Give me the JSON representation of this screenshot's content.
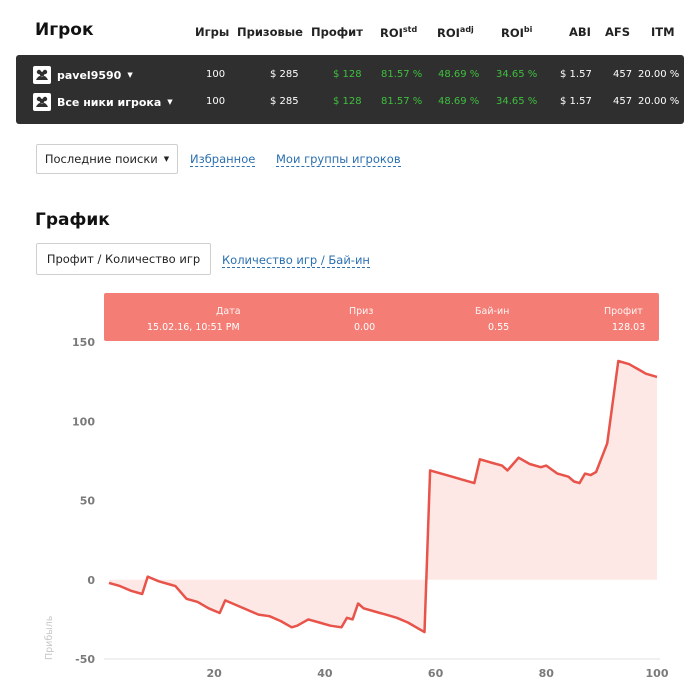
{
  "header": {
    "title": "Игрок",
    "col_games": "Игры",
    "col_prizes": "Призовые",
    "col_profit": "Профит",
    "col_roi_std": "ROI",
    "col_roi_std_sup": "std",
    "col_roi_adj": "ROI",
    "col_roi_adj_sup": "adj",
    "col_roi_bi": "ROI",
    "col_roi_bi_sup": "bi",
    "col_abi": "ABI",
    "col_afs": "AFS",
    "col_itm": "ITM"
  },
  "players": [
    {
      "name": "pavel9590",
      "games": "100",
      "prizes": "$ 285",
      "profit": "$ 128",
      "roi_std": "81.57 %",
      "roi_adj": "48.69 %",
      "roi_bi": "34.65 %",
      "abi": "$ 1.57",
      "afs": "457",
      "itm": "20.00 %"
    },
    {
      "name": "Все ники игрока",
      "games": "100",
      "prizes": "$ 285",
      "profit": "$ 128",
      "roi_std": "81.57 %",
      "roi_adj": "48.69 %",
      "roi_bi": "34.65 %",
      "abi": "$ 1.57",
      "afs": "457",
      "itm": "20.00 %"
    }
  ],
  "search": {
    "recent_label": "Последние поиски",
    "favorites_label": "Избранное",
    "groups_label": "Мои группы игроков"
  },
  "graph": {
    "title": "График",
    "mode_active": "Профит / Количество игр",
    "mode_other": "Количество игр / Бай-ин"
  },
  "tooltip": {
    "date_label": "Дата",
    "date_value": "15.02.16, 10:51 PM",
    "prize_label": "Приз",
    "prize_value": "0.00",
    "buyin_label": "Бай-ин",
    "buyin_value": "0.55",
    "profit_label": "Профит",
    "profit_value": "128.03"
  },
  "colors": {
    "accent": "#f47e75",
    "line": "#e8534a",
    "fill": "#fde8e6",
    "green": "#3fbf3f",
    "link": "#2a6fb0"
  },
  "chart_data": {
    "type": "area",
    "ylabel": "Прибыль",
    "xlim": [
      1,
      100
    ],
    "ylim": [
      -50,
      150
    ],
    "x_ticks": [
      20,
      40,
      60,
      80,
      100
    ],
    "y_ticks": [
      150,
      100,
      50,
      0,
      -50
    ],
    "x": [
      1,
      3,
      5,
      7,
      8,
      10,
      12,
      13,
      15,
      17,
      19,
      21,
      22,
      24,
      26,
      28,
      30,
      32,
      34,
      35,
      37,
      39,
      41,
      43,
      44,
      45,
      46,
      47,
      49,
      51,
      53,
      55,
      57,
      58,
      59,
      61,
      63,
      65,
      67,
      68,
      70,
      72,
      73,
      75,
      77,
      79,
      80,
      82,
      84,
      85,
      86,
      87,
      88,
      89,
      91,
      93,
      95,
      97,
      98,
      100
    ],
    "values": [
      -2,
      -4,
      -7,
      -9,
      2,
      -1,
      -3,
      -4,
      -12,
      -14,
      -18,
      -21,
      -13,
      -16,
      -19,
      -22,
      -23,
      -26,
      -30,
      -29,
      -25,
      -27,
      -29,
      -30,
      -24,
      -25,
      -15,
      -18,
      -20,
      -22,
      -24,
      -27,
      -31,
      -33,
      69,
      67,
      65,
      63,
      61,
      76,
      74,
      72,
      69,
      77,
      73,
      71,
      72,
      67,
      65,
      62,
      61,
      67,
      66,
      68,
      86,
      138,
      136,
      132,
      130,
      128
    ]
  }
}
